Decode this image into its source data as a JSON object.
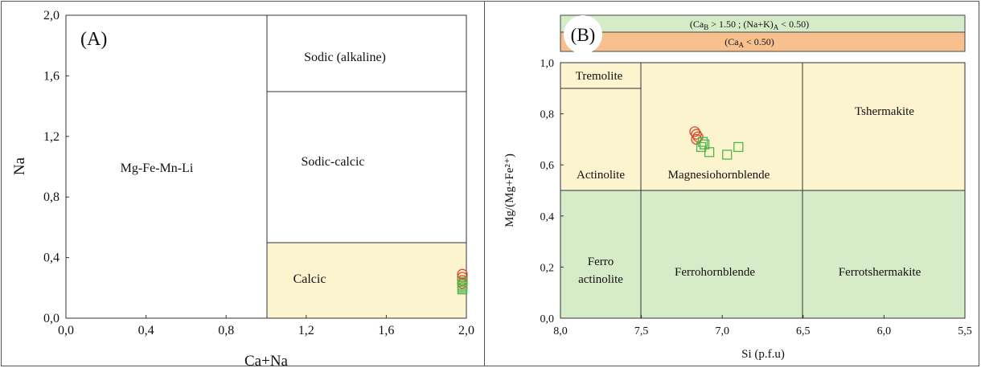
{
  "chart_data": [
    {
      "type": "scatter",
      "panel_label": "(A)",
      "xlabel": "Ca+Na",
      "ylabel": "Na",
      "xlim": [
        0.0,
        2.0
      ],
      "ylim": [
        0.0,
        2.0
      ],
      "x_ticks": [
        "0,0",
        "0,4",
        "0,8",
        "1,2",
        "1,6",
        "2,0"
      ],
      "y_ticks": [
        "0,0",
        "0,4",
        "0,8",
        "1,2",
        "1,6",
        "2,0"
      ],
      "colors": {
        "calcic_fill": "#fcf3cf",
        "circle": "#d9482b",
        "square": "#4db848"
      },
      "fields": [
        {
          "name": "Mg-Fe-Mn-Li"
        },
        {
          "name": "Sodic (alkaline)"
        },
        {
          "name": "Sodic-calcic"
        },
        {
          "name": "Calcic"
        }
      ],
      "series": [
        {
          "marker": "circle",
          "points": [
            [
              1.98,
              0.29
            ],
            [
              1.98,
              0.27
            ],
            [
              1.98,
              0.25
            ],
            [
              1.98,
              0.23
            ]
          ]
        },
        {
          "marker": "square",
          "points": [
            [
              1.98,
              0.24
            ],
            [
              1.98,
              0.22
            ],
            [
              1.98,
              0.21
            ],
            [
              1.98,
              0.2
            ],
            [
              1.98,
              0.19
            ]
          ]
        }
      ]
    },
    {
      "type": "scatter",
      "panel_label": "(B)",
      "xlabel": "Si (p.f.u)",
      "ylabel": "Mg/(Mg+Fe²⁺)",
      "xlim": [
        8.0,
        5.5
      ],
      "ylim": [
        0.0,
        1.0
      ],
      "x_reversed": true,
      "x_ticks": [
        "8,0",
        "7,5",
        "7,0",
        "6,5",
        "6,0",
        "5,5"
      ],
      "y_ticks": [
        "0,0",
        "0,2",
        "0,4",
        "0,6",
        "0,8",
        "1,0"
      ],
      "colors": {
        "yellow_fill": "#fcf3cf",
        "green_fill": "#d6ecc8",
        "orange_fill": "#f7c08e",
        "circle": "#d9482b",
        "square": "#4db848"
      },
      "legend_bars": [
        {
          "text_pre": "(Ca",
          "sub1": "B",
          "text_mid": " > 1.50 ; (Na+K)",
          "sub2": "A",
          "text_post": " < 0.50)"
        },
        {
          "text_pre": "(Ca",
          "sub1": "A",
          "text_mid": " < 0.50)",
          "sub2": "",
          "text_post": ""
        }
      ],
      "fields": [
        {
          "name": "Tremolite"
        },
        {
          "name": "Actinolite"
        },
        {
          "name": "Magnesiohornblende"
        },
        {
          "name": "Tshermakite"
        },
        {
          "name": "Ferro"
        },
        {
          "name": "actinolite"
        },
        {
          "name": "Ferrohornblende"
        },
        {
          "name": "Ferrotshermakite"
        }
      ],
      "series": [
        {
          "marker": "circle",
          "points": [
            [
              7.17,
              0.73
            ],
            [
              7.16,
              0.72
            ],
            [
              7.15,
              0.71
            ],
            [
              7.16,
              0.7
            ]
          ]
        },
        {
          "marker": "square",
          "points": [
            [
              7.12,
              0.69
            ],
            [
              7.13,
              0.67
            ],
            [
              7.11,
              0.68
            ],
            [
              7.08,
              0.65
            ],
            [
              6.97,
              0.64
            ],
            [
              6.9,
              0.67
            ]
          ]
        }
      ]
    }
  ]
}
